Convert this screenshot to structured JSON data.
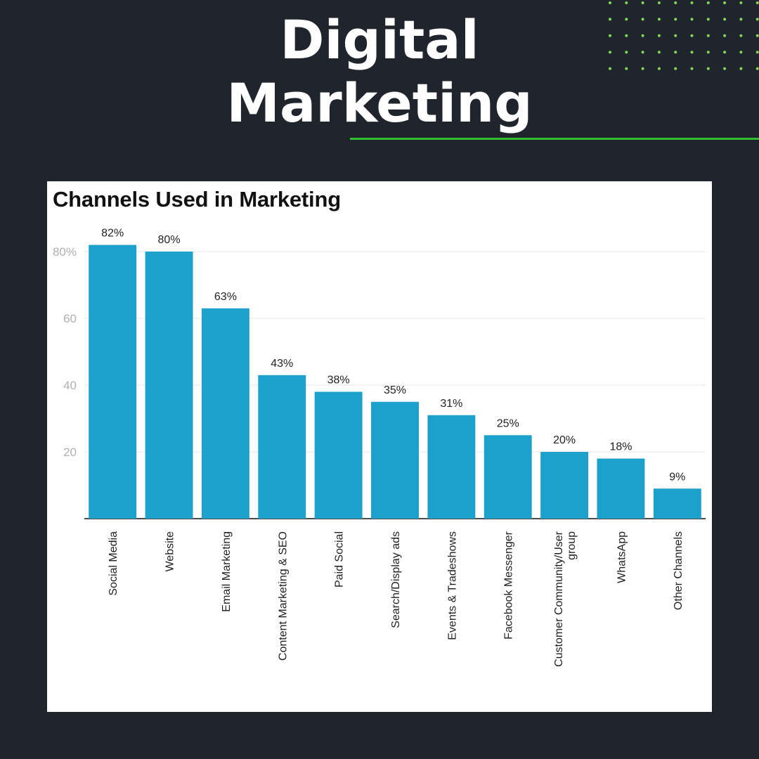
{
  "header": {
    "title_line1": "Digital",
    "title_line2": "Marketing"
  },
  "colors": {
    "background": "#20242c",
    "accent": "#2fbf2f",
    "bar": "#1ba1cc",
    "dot": "#7ed957"
  },
  "chart_data": {
    "type": "bar",
    "title": "Channels Used in Marketing",
    "categories": [
      "Social Media",
      "Website",
      "Email Marketing",
      "Content Marketing & SEO",
      "Paid Social",
      "Search/Display ads",
      "Events & Tradeshows",
      "Facebook Messenger",
      "Customer Community/User group",
      "WhatsApp",
      "Other Channels"
    ],
    "values": [
      82,
      80,
      63,
      43,
      38,
      35,
      31,
      25,
      20,
      18,
      9
    ],
    "data_labels": [
      "82%",
      "80%",
      "63%",
      "43%",
      "38%",
      "35%",
      "31%",
      "25%",
      "20%",
      "18%",
      "9%"
    ],
    "yticks": [
      20,
      40,
      60,
      80
    ],
    "ytick_labels": [
      "20",
      "40",
      "60",
      "80%"
    ],
    "ylim": [
      0,
      80
    ],
    "grid": true,
    "xlabel": "",
    "ylabel": ""
  }
}
